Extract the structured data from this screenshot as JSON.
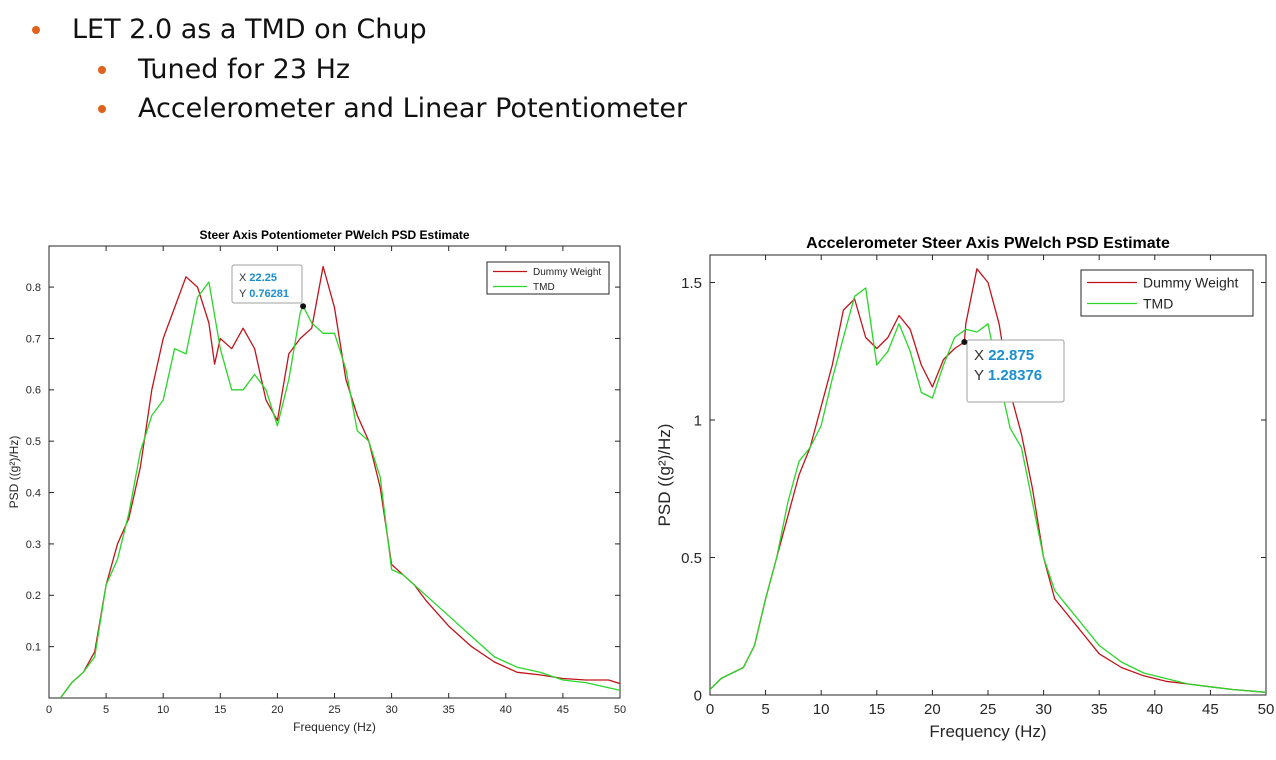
{
  "slide": {
    "bullets": [
      "LET 2.0 as a TMD on Chup",
      "Tuned for 23 Hz",
      "Accelerometer and Linear Potentiometer"
    ],
    "accent_color": "#e0621c"
  },
  "chart_data": [
    {
      "type": "line",
      "title": "Steer Axis Potentiometer PWelch PSD Estimate",
      "xlabel": "Frequency (Hz)",
      "ylabel": "PSD ((g²)/Hz)",
      "xlim": [
        0,
        50
      ],
      "ylim": [
        0,
        0.88
      ],
      "xticks": [
        0,
        5,
        10,
        15,
        20,
        25,
        30,
        35,
        40,
        45,
        50
      ],
      "yticks": [
        0.1,
        0.2,
        0.3,
        0.4,
        0.5,
        0.6,
        0.7,
        0.8
      ],
      "grid": false,
      "legend": "top-right",
      "series": [
        {
          "name": "Dummy Weight",
          "color": "#c0141c",
          "x": [
            1,
            2,
            3,
            4,
            5,
            6,
            7,
            8,
            9,
            10,
            11,
            12,
            13,
            14,
            14.5,
            15,
            16,
            17,
            18,
            19,
            20,
            21,
            22,
            23,
            24,
            25,
            26,
            27,
            28,
            29,
            30,
            31,
            32,
            33,
            35,
            37,
            39,
            41,
            43,
            45,
            47,
            49,
            50
          ],
          "y": [
            0.0,
            0.03,
            0.05,
            0.09,
            0.22,
            0.3,
            0.35,
            0.45,
            0.6,
            0.7,
            0.76,
            0.82,
            0.8,
            0.73,
            0.65,
            0.7,
            0.68,
            0.72,
            0.68,
            0.58,
            0.54,
            0.67,
            0.7,
            0.72,
            0.84,
            0.76,
            0.62,
            0.55,
            0.5,
            0.41,
            0.26,
            0.24,
            0.22,
            0.19,
            0.14,
            0.1,
            0.07,
            0.05,
            0.045,
            0.038,
            0.035,
            0.035,
            0.028
          ]
        },
        {
          "name": "TMD",
          "color": "#2ad62a",
          "x": [
            1,
            2,
            3,
            4,
            5,
            6,
            7,
            8,
            9,
            10,
            11,
            12,
            13,
            14,
            15,
            16,
            17,
            18,
            19,
            20,
            21,
            22,
            22.25,
            23,
            24,
            25,
            26,
            27,
            28,
            29,
            30,
            31,
            32,
            33,
            35,
            37,
            39,
            41,
            43,
            45,
            47,
            49,
            50
          ],
          "y": [
            0.0,
            0.03,
            0.05,
            0.08,
            0.22,
            0.27,
            0.36,
            0.48,
            0.55,
            0.58,
            0.68,
            0.67,
            0.78,
            0.81,
            0.68,
            0.6,
            0.6,
            0.63,
            0.6,
            0.53,
            0.62,
            0.75,
            0.76281,
            0.73,
            0.71,
            0.71,
            0.64,
            0.52,
            0.5,
            0.43,
            0.25,
            0.24,
            0.22,
            0.2,
            0.16,
            0.12,
            0.08,
            0.06,
            0.05,
            0.035,
            0.03,
            0.02,
            0.015
          ]
        }
      ],
      "datatip": {
        "x_label": "X",
        "x_value": "22.25",
        "y_label": "Y",
        "y_value": "0.76281",
        "x": 22.25,
        "y": 0.76281
      }
    },
    {
      "type": "line",
      "title": "Accelerometer Steer Axis PWelch PSD Estimate",
      "xlabel": "Frequency (Hz)",
      "ylabel": "PSD ((g²)/Hz)",
      "xlim": [
        0,
        50
      ],
      "ylim": [
        0,
        1.6
      ],
      "xticks": [
        0,
        5,
        10,
        15,
        20,
        25,
        30,
        35,
        40,
        45,
        50
      ],
      "yticks": [
        0,
        0.5,
        1,
        1.5
      ],
      "ytick_labels": [
        "0",
        "0.5",
        "1",
        "1.5"
      ],
      "grid": false,
      "legend": "top-right",
      "series": [
        {
          "name": "Dummy Weight",
          "color": "#c0141c",
          "x": [
            0,
            1,
            2,
            3,
            4,
            5,
            6,
            7,
            8,
            9,
            10,
            11,
            12,
            13,
            14,
            15,
            16,
            17,
            18,
            19,
            20,
            21,
            22,
            22.875,
            23,
            24,
            25,
            26,
            27,
            28,
            29,
            30,
            31,
            32,
            33,
            35,
            37,
            39,
            41,
            43,
            45,
            47,
            50
          ],
          "y": [
            0.02,
            0.06,
            0.08,
            0.1,
            0.18,
            0.35,
            0.5,
            0.65,
            0.8,
            0.9,
            1.05,
            1.2,
            1.4,
            1.44,
            1.3,
            1.26,
            1.3,
            1.38,
            1.33,
            1.2,
            1.12,
            1.22,
            1.26,
            1.28376,
            1.35,
            1.55,
            1.5,
            1.35,
            1.1,
            0.95,
            0.75,
            0.5,
            0.35,
            0.3,
            0.25,
            0.15,
            0.1,
            0.07,
            0.05,
            0.04,
            0.03,
            0.02,
            0.01
          ]
        },
        {
          "name": "TMD",
          "color": "#2ad62a",
          "x": [
            0,
            1,
            2,
            3,
            4,
            5,
            6,
            7,
            8,
            9,
            10,
            11,
            12,
            13,
            14,
            15,
            16,
            17,
            18,
            19,
            20,
            21,
            22,
            23,
            24,
            25,
            26,
            27,
            28,
            29,
            30,
            31,
            32,
            33,
            35,
            37,
            39,
            41,
            43,
            45,
            47,
            50
          ],
          "y": [
            0.02,
            0.06,
            0.08,
            0.1,
            0.18,
            0.35,
            0.5,
            0.7,
            0.85,
            0.9,
            0.98,
            1.15,
            1.3,
            1.45,
            1.48,
            1.2,
            1.25,
            1.35,
            1.25,
            1.1,
            1.08,
            1.2,
            1.3,
            1.33,
            1.32,
            1.35,
            1.15,
            0.97,
            0.9,
            0.7,
            0.5,
            0.38,
            0.33,
            0.28,
            0.18,
            0.12,
            0.08,
            0.06,
            0.04,
            0.03,
            0.02,
            0.01
          ]
        }
      ],
      "datatip": {
        "x_label": "X",
        "x_value": "22.875",
        "y_label": "Y",
        "y_value": "1.28376",
        "x": 22.875,
        "y": 1.28376
      }
    }
  ]
}
